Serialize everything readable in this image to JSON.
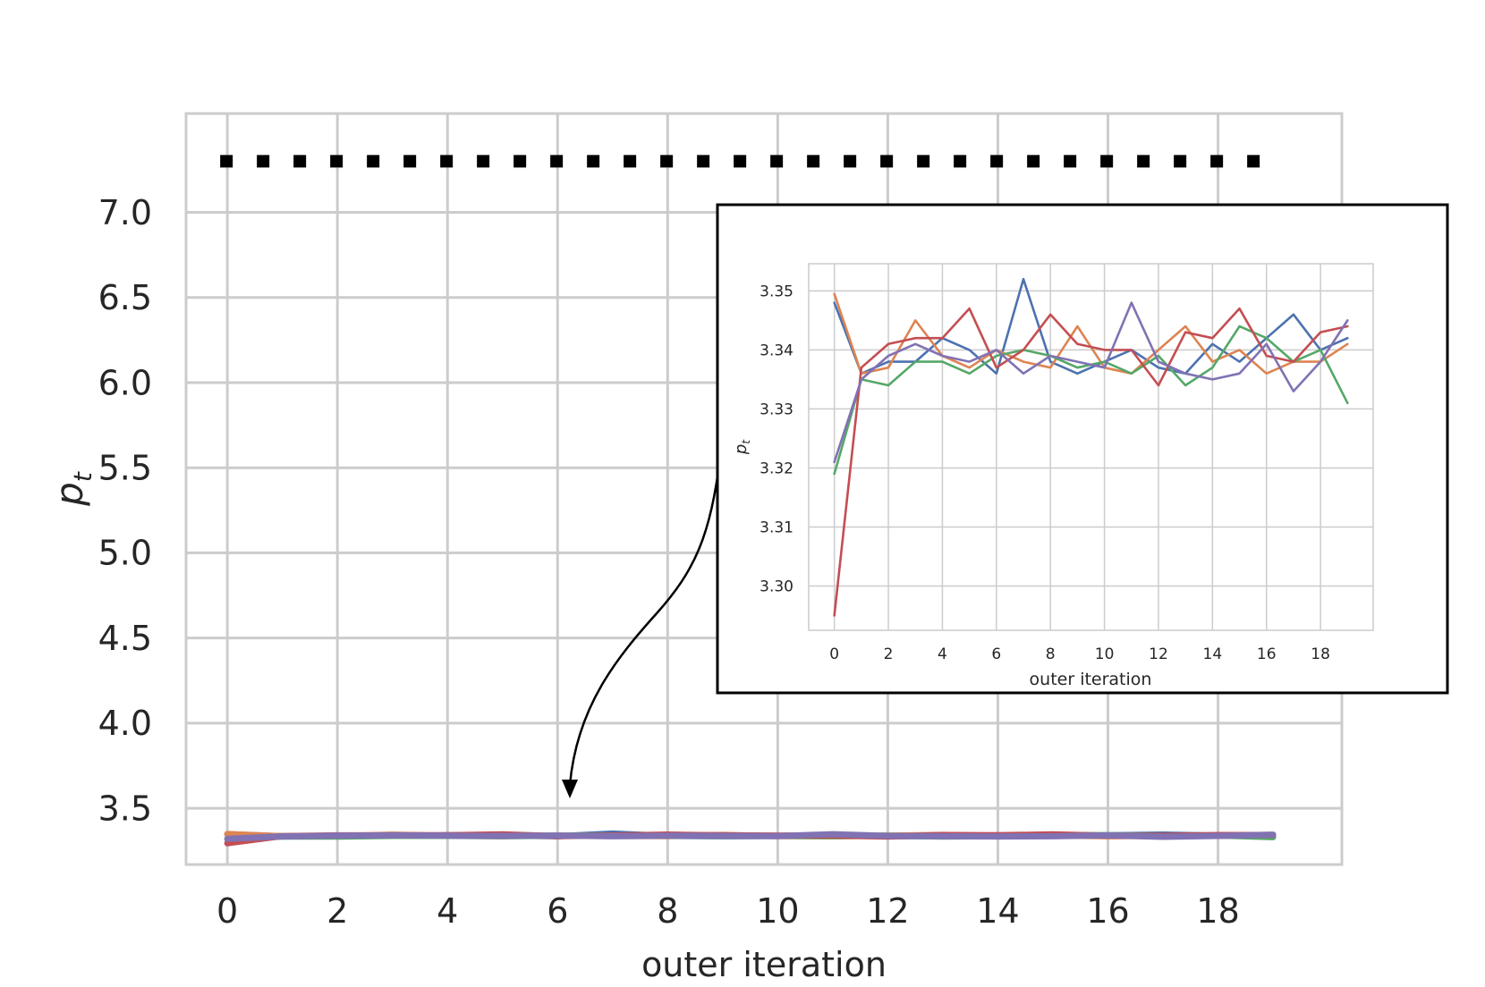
{
  "chart_data": [
    {
      "type": "line",
      "xlabel": "outer iteration",
      "ylabel": "p_t",
      "ylabel_base": "p",
      "ylabel_sub": "t",
      "xlim": [
        -0.75,
        20.25
      ],
      "ylim": [
        3.17,
        7.58
      ],
      "xticks": [
        0,
        2,
        4,
        6,
        8,
        10,
        12,
        14,
        16,
        18
      ],
      "yticks": [
        3.5,
        4.0,
        4.5,
        5.0,
        5.5,
        6.0,
        6.5,
        7.0
      ],
      "grid": true,
      "reference_line": {
        "style": "dotted",
        "color": "#000000",
        "y": 7.3,
        "x_range": [
          0,
          19
        ]
      },
      "series": [
        {
          "color": "#4c72b0",
          "values": [
            3.348,
            3.336,
            3.338,
            3.338,
            3.342,
            3.34,
            3.336,
            3.352,
            3.338,
            3.336,
            3.338,
            3.34,
            3.337,
            3.336,
            3.341,
            3.338,
            3.342,
            3.346,
            3.34,
            3.342
          ]
        },
        {
          "color": "#dd8452",
          "values": [
            3.3495,
            3.336,
            3.337,
            3.345,
            3.339,
            3.337,
            3.34,
            3.338,
            3.337,
            3.344,
            3.337,
            3.336,
            3.34,
            3.344,
            3.338,
            3.34,
            3.336,
            3.338,
            3.338,
            3.341
          ]
        },
        {
          "color": "#55a868",
          "values": [
            3.319,
            3.335,
            3.334,
            3.338,
            3.338,
            3.336,
            3.339,
            3.34,
            3.339,
            3.337,
            3.338,
            3.336,
            3.339,
            3.334,
            3.337,
            3.344,
            3.342,
            3.338,
            3.34,
            3.331
          ]
        },
        {
          "color": "#c44e52",
          "values": [
            3.295,
            3.337,
            3.341,
            3.342,
            3.342,
            3.347,
            3.337,
            3.34,
            3.346,
            3.341,
            3.34,
            3.34,
            3.334,
            3.343,
            3.342,
            3.347,
            3.339,
            3.338,
            3.343,
            3.344
          ]
        },
        {
          "color": "#8172b3",
          "values": [
            3.321,
            3.335,
            3.339,
            3.341,
            3.339,
            3.338,
            3.34,
            3.336,
            3.339,
            3.338,
            3.337,
            3.348,
            3.338,
            3.336,
            3.335,
            3.336,
            3.341,
            3.333,
            3.338,
            3.345
          ]
        }
      ]
    },
    {
      "type": "line",
      "role": "inset",
      "xlabel": "outer iteration",
      "ylabel": "p_t",
      "ylabel_base": "p",
      "ylabel_sub": "t",
      "xlim": [
        -0.95,
        19.95
      ],
      "ylim": [
        3.2925,
        3.3546
      ],
      "xticks": [
        0,
        2,
        4,
        6,
        8,
        10,
        12,
        14,
        16,
        18
      ],
      "yticks": [
        3.3,
        3.31,
        3.32,
        3.33,
        3.34,
        3.35
      ],
      "ytick_labels": [
        "3.30",
        "3.31",
        "3.32",
        "3.33",
        "3.34",
        "3.35"
      ],
      "grid": true,
      "series_ref": "same as main chart series"
    }
  ]
}
